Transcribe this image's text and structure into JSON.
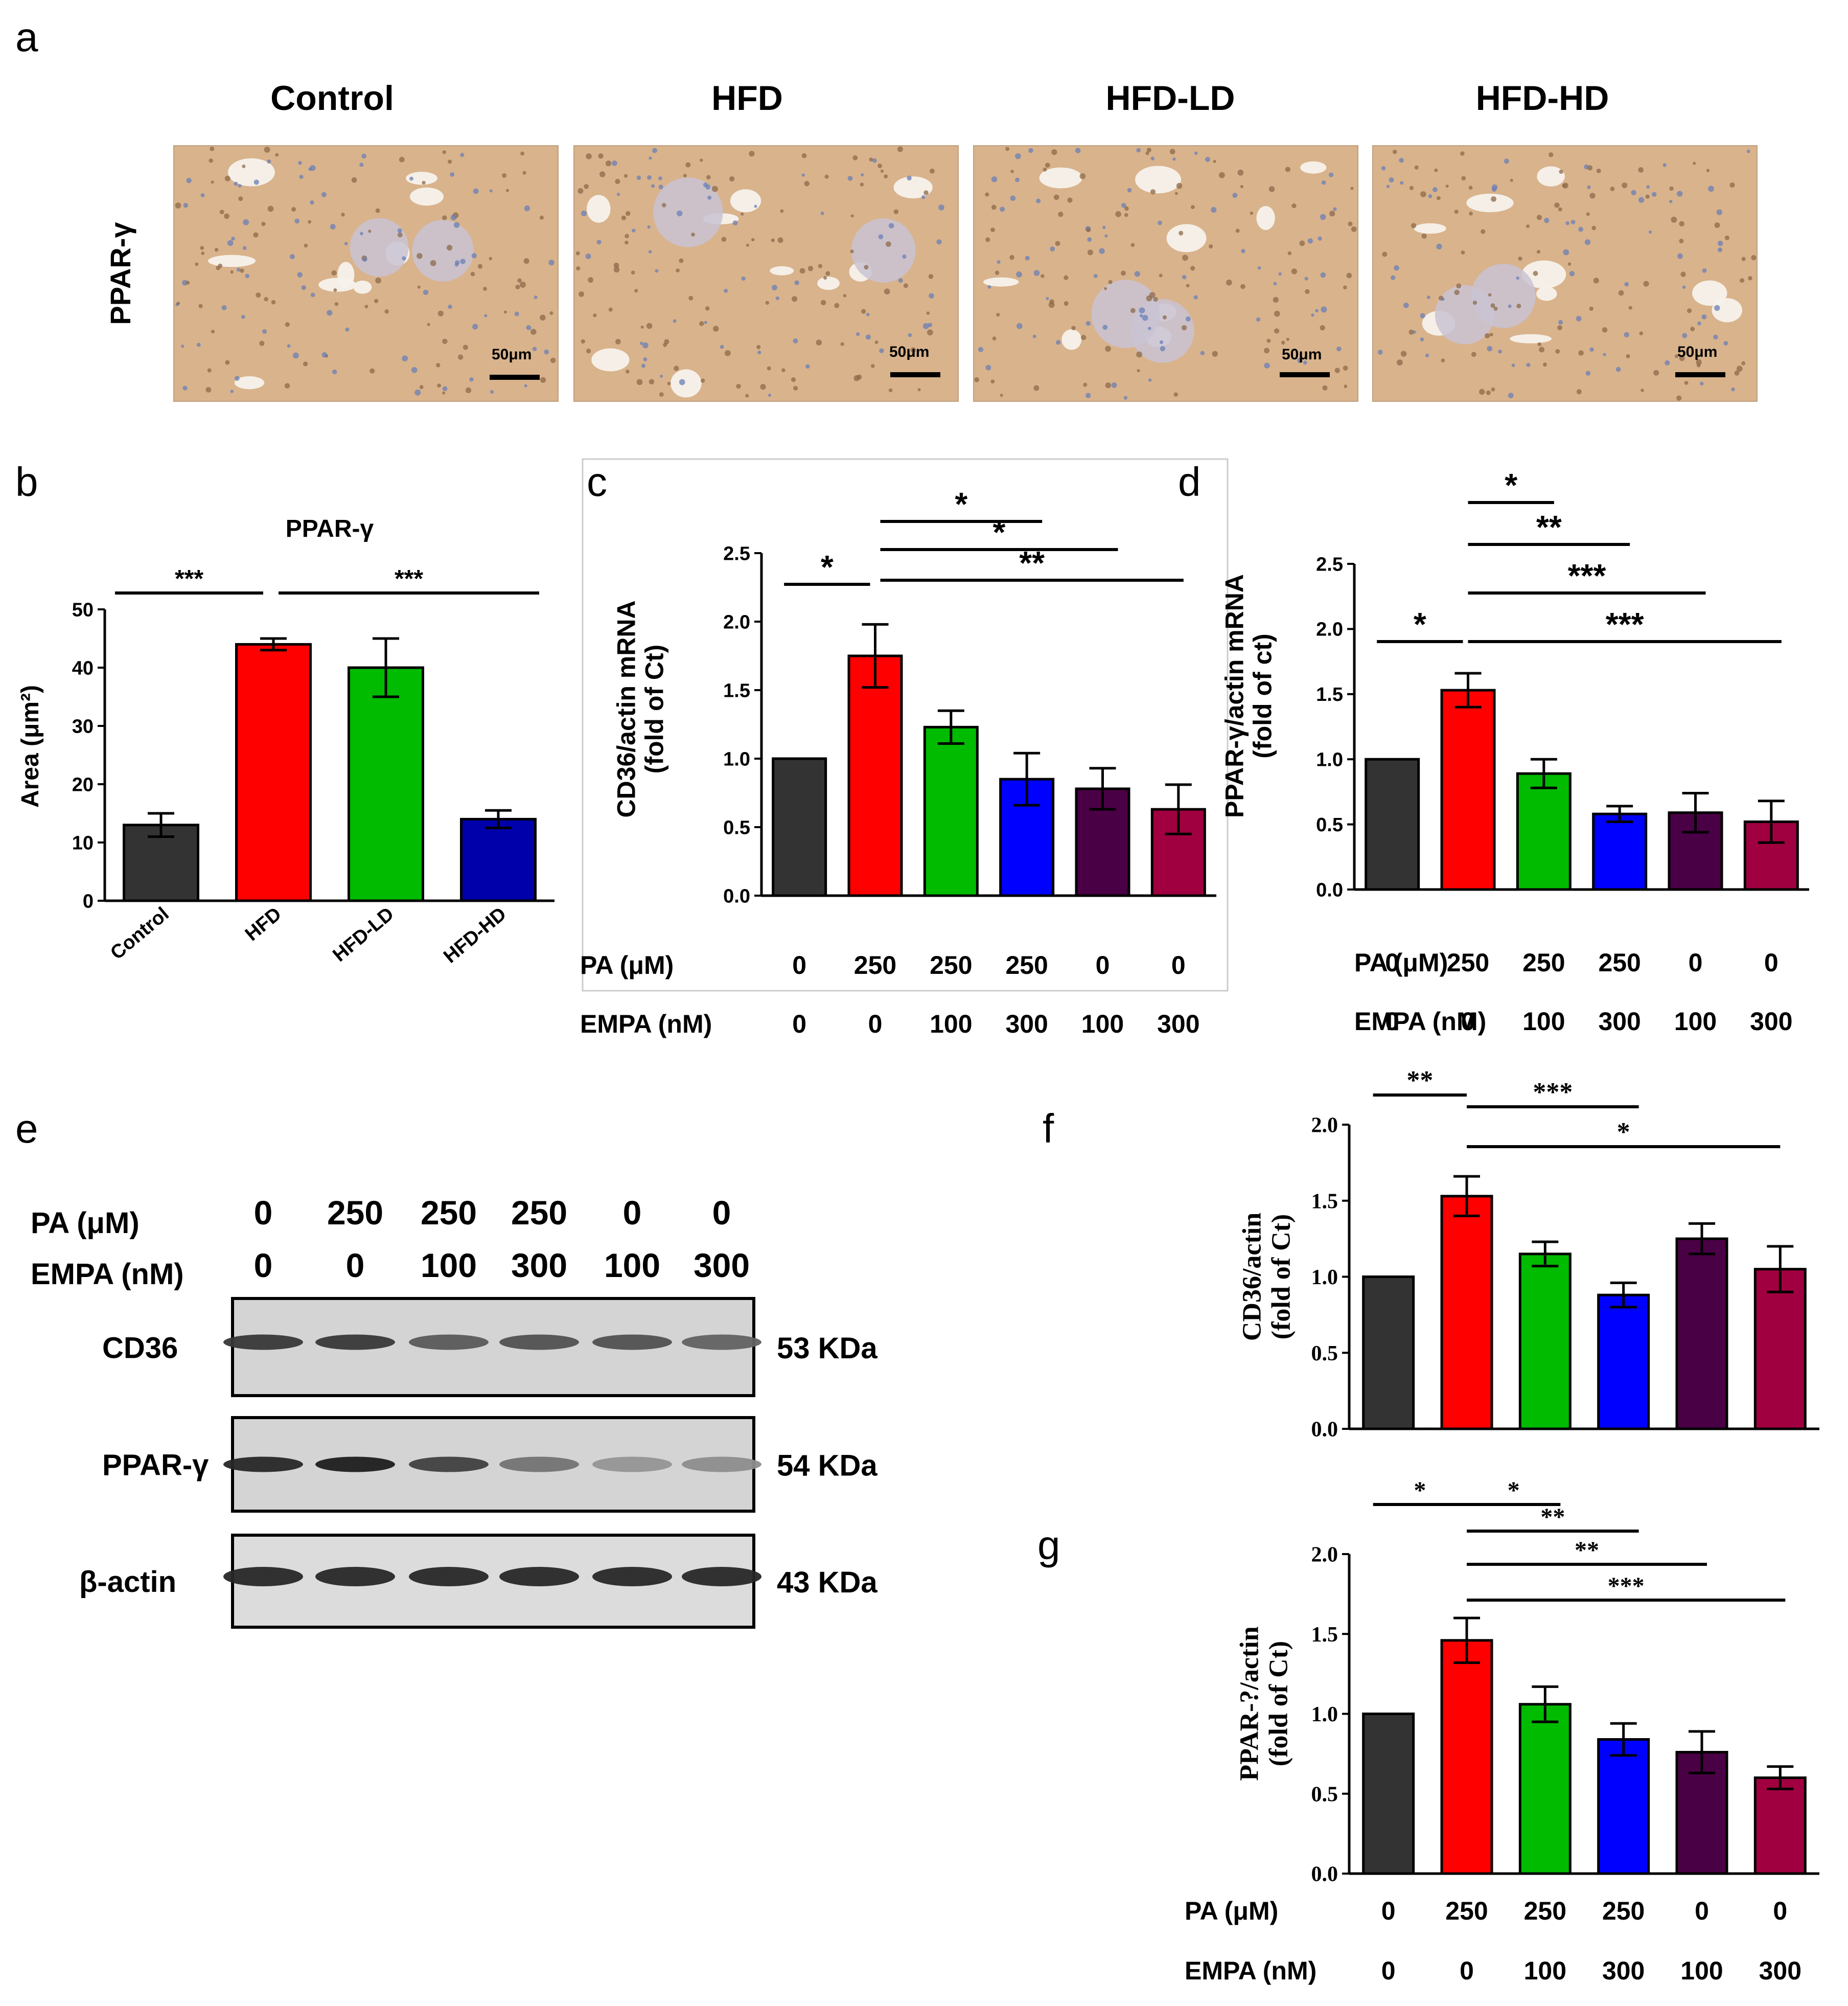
{
  "figure": {
    "panel_letters": [
      "a",
      "b",
      "c",
      "d",
      "e",
      "f",
      "g"
    ],
    "panel_a": {
      "groups": [
        "Control",
        "HFD",
        "HFD-LD",
        "HFD-HD"
      ],
      "row_label": "PPAR-γ",
      "scale_bar": "50μm"
    },
    "conditions": {
      "pa_label": "PA (μM)",
      "empa_label": "EMPA (nM)",
      "pa_values": [
        "0",
        "250",
        "250",
        "250",
        "0",
        "0"
      ],
      "empa_values": [
        "0",
        "0",
        "100",
        "300",
        "100",
        "300"
      ]
    },
    "colors": {
      "black": "#333333",
      "red": "#ff0000",
      "green": "#00bb00",
      "blue": "#0000ff",
      "purple": "#4a0045",
      "crimson": "#a00040",
      "navy": "#0000aa",
      "tissue": "#d9b38c",
      "nuclei": "#6a7fb5"
    },
    "panel_e": {
      "bands": [
        {
          "label": "CD36",
          "size": "53 KDa",
          "intensity": [
            0.85,
            0.85,
            0.65,
            0.7,
            0.7,
            0.6
          ]
        },
        {
          "label": "PPAR-γ",
          "size": "54 KDa",
          "intensity": [
            0.95,
            1.0,
            0.8,
            0.5,
            0.3,
            0.35
          ]
        },
        {
          "label": "β-actin",
          "size": "43 KDa",
          "intensity": [
            0.95,
            0.95,
            0.95,
            0.95,
            0.95,
            0.95
          ]
        }
      ]
    }
  },
  "chart_data": [
    {
      "panel": "b",
      "type": "bar",
      "title": "PPAR-γ",
      "ylabel": "Area (μm²)",
      "ylim": [
        0,
        50
      ],
      "yticks": [
        "0",
        "10",
        "20",
        "30",
        "40",
        "50"
      ],
      "categories": [
        "Control",
        "HFD",
        "HFD-LD",
        "HFD-HD"
      ],
      "values": [
        13,
        44,
        40,
        14
      ],
      "errors": [
        2,
        1,
        5,
        1.5
      ],
      "bar_colors": [
        "#333333",
        "#ff0000",
        "#00bb00",
        "#0000aa"
      ],
      "significance": [
        {
          "from": 0,
          "to": 1,
          "label": "***"
        },
        {
          "from": 1,
          "to": 3,
          "label": "***"
        }
      ]
    },
    {
      "panel": "c",
      "type": "bar",
      "title": "",
      "ylabel": [
        "CD36/actin mRNA",
        "(fold of Ct)"
      ],
      "ylim": [
        0,
        2.5
      ],
      "yticks": [
        "0.0",
        "0.5",
        "1.0",
        "1.5",
        "2.0",
        "2.5"
      ],
      "values": [
        1.0,
        1.75,
        1.23,
        0.85,
        0.78,
        0.63
      ],
      "errors": [
        0,
        0.23,
        0.12,
        0.19,
        0.15,
        0.18
      ],
      "bar_colors": [
        "#333333",
        "#ff0000",
        "#00bb00",
        "#0000ff",
        "#4a0045",
        "#a00040"
      ],
      "significance": [
        {
          "from": 0,
          "to": 1,
          "label": "*"
        },
        {
          "from": 1,
          "to": 3,
          "label": "*"
        },
        {
          "from": 1,
          "to": 4,
          "label": "*"
        },
        {
          "from": 1,
          "to": 5,
          "label": "**"
        }
      ]
    },
    {
      "panel": "d",
      "type": "bar",
      "title": "",
      "ylabel": [
        "PPAR-γ/actin mRNA",
        "(fold of ct)"
      ],
      "ylim": [
        0,
        2.5
      ],
      "yticks": [
        "0.0",
        "0.5",
        "1.0",
        "1.5",
        "2.0",
        "2.5"
      ],
      "values": [
        1.0,
        1.53,
        0.89,
        0.58,
        0.59,
        0.52
      ],
      "errors": [
        0,
        0.13,
        0.11,
        0.06,
        0.15,
        0.16
      ],
      "bar_colors": [
        "#333333",
        "#ff0000",
        "#00bb00",
        "#0000ff",
        "#4a0045",
        "#a00040"
      ],
      "significance": [
        {
          "from": 0,
          "to": 1,
          "label": "*"
        },
        {
          "from": 1,
          "to": 2,
          "label": "*"
        },
        {
          "from": 1,
          "to": 3,
          "label": "**"
        },
        {
          "from": 1,
          "to": 4,
          "label": "***"
        },
        {
          "from": 1,
          "to": 5,
          "label": "***"
        }
      ]
    },
    {
      "panel": "f",
      "type": "bar",
      "title": "",
      "ylabel": [
        "CD36/actin",
        "(fold of Ct)"
      ],
      "ylim": [
        0,
        2.0
      ],
      "yticks": [
        "0.0",
        "0.5",
        "1.0",
        "1.5",
        "2.0"
      ],
      "values": [
        1.0,
        1.53,
        1.15,
        0.88,
        1.25,
        1.05
      ],
      "errors": [
        0,
        0.13,
        0.08,
        0.08,
        0.1,
        0.15
      ],
      "bar_colors": [
        "#333333",
        "#ff0000",
        "#00bb00",
        "#0000ff",
        "#4a0045",
        "#a00040"
      ],
      "significance": [
        {
          "from": 0,
          "to": 1,
          "label": "**"
        },
        {
          "from": 1,
          "to": 3,
          "label": "***"
        },
        {
          "from": 1,
          "to": 5,
          "label": "*"
        }
      ]
    },
    {
      "panel": "g",
      "type": "bar",
      "title": "",
      "ylabel": [
        "PPAR-?/actin",
        "(fold of Ct)"
      ],
      "ylim": [
        0,
        2.0
      ],
      "yticks": [
        "0.0",
        "0.5",
        "1.0",
        "1.5",
        "2.0"
      ],
      "values": [
        1.0,
        1.46,
        1.06,
        0.84,
        0.76,
        0.6
      ],
      "errors": [
        0,
        0.14,
        0.11,
        0.1,
        0.13,
        0.07
      ],
      "bar_colors": [
        "#333333",
        "#ff0000",
        "#00bb00",
        "#0000ff",
        "#4a0045",
        "#a00040"
      ],
      "significance": [
        {
          "from": 0,
          "to": 1,
          "label": "*"
        },
        {
          "from": 1,
          "to": 2,
          "label": "*"
        },
        {
          "from": 1,
          "to": 3,
          "label": "**"
        },
        {
          "from": 1,
          "to": 4,
          "label": "**"
        },
        {
          "from": 1,
          "to": 5,
          "label": "***"
        }
      ]
    }
  ]
}
